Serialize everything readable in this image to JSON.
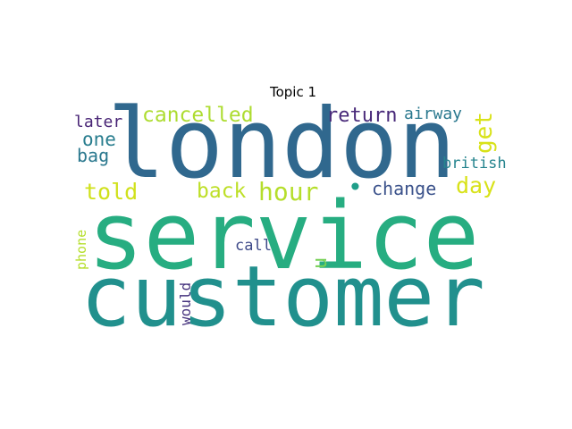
{
  "title": "Topic 1",
  "words": [
    {
      "key": "london",
      "text": "london",
      "color": "#30688e"
    },
    {
      "key": "service",
      "text": "service",
      "color": "#27ad81"
    },
    {
      "key": "customer",
      "text": "customer",
      "color": "#21908d"
    },
    {
      "key": "cancelled",
      "text": "cancelled",
      "color": "#addc30"
    },
    {
      "key": "return",
      "text": "return",
      "color": "#482979"
    },
    {
      "key": "airway",
      "text": "airway",
      "color": "#2a788e"
    },
    {
      "key": "get",
      "text": "get",
      "color": "#d8e219"
    },
    {
      "key": "later",
      "text": "later",
      "color": "#482475"
    },
    {
      "key": "one",
      "text": "one",
      "color": "#287d8e"
    },
    {
      "key": "bag",
      "text": "bag",
      "color": "#2a788e"
    },
    {
      "key": "british",
      "text": "british",
      "color": "#25848e"
    },
    {
      "key": "told",
      "text": "told",
      "color": "#d0e11c"
    },
    {
      "key": "back",
      "text": "back",
      "color": "#bddf26"
    },
    {
      "key": "hour",
      "text": "hour",
      "color": "#b5de2b"
    },
    {
      "key": "dot",
      "text": "•",
      "color": "#1f9e89"
    },
    {
      "key": "change",
      "text": "change",
      "color": "#3b528b"
    },
    {
      "key": "day",
      "text": "day",
      "color": "#d8e219"
    },
    {
      "key": "phone",
      "text": "phone",
      "color": "#b5de2b"
    },
    {
      "key": "call",
      "text": "call",
      "color": "#3e4a89"
    },
    {
      "key": "u",
      "text": "u",
      "color": "#75d054"
    },
    {
      "key": "would",
      "text": "would",
      "color": "#46337e"
    }
  ]
}
